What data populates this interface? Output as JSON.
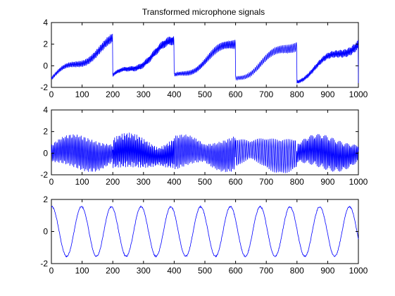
{
  "chart_data": [
    {
      "type": "line",
      "title": "Transformed microphone signals",
      "xlim": [
        0,
        1000
      ],
      "ylim": [
        -2,
        4
      ],
      "xticks": [
        0,
        100,
        200,
        300,
        400,
        500,
        600,
        700,
        800,
        900,
        1000
      ],
      "yticks": [
        -2,
        0,
        2,
        4
      ],
      "grid": false,
      "series": [
        {
          "color": "#0000ff",
          "kind": "sawtooth-with-oscillation",
          "segment_length": 200,
          "ramp_from": -1.2,
          "ramp_to": 2.2,
          "oscillation_amplitude": 0.45
        }
      ]
    },
    {
      "type": "line",
      "title": "",
      "xlim": [
        0,
        1000
      ],
      "ylim": [
        -2,
        4
      ],
      "xticks": [
        0,
        100,
        200,
        300,
        400,
        500,
        600,
        700,
        800,
        900,
        1000
      ],
      "yticks": [
        -2,
        0,
        2,
        4
      ],
      "grid": false,
      "series": [
        {
          "color": "#0000ff",
          "kind": "dense-oscillation",
          "segment_length": 200,
          "center": 0.0,
          "oscillation_amplitude": 1.6
        }
      ]
    },
    {
      "type": "line",
      "title": "",
      "xlim": [
        0,
        1000
      ],
      "ylim": [
        -2,
        2
      ],
      "xticks": [
        0,
        100,
        200,
        300,
        400,
        500,
        600,
        700,
        800,
        900,
        1000
      ],
      "yticks": [
        -2,
        0,
        2
      ],
      "grid": false,
      "series": [
        {
          "color": "#0000ff",
          "kind": "sine",
          "period": 97,
          "phase_at_x0": 1.5,
          "amplitude": 1.55
        }
      ]
    }
  ]
}
